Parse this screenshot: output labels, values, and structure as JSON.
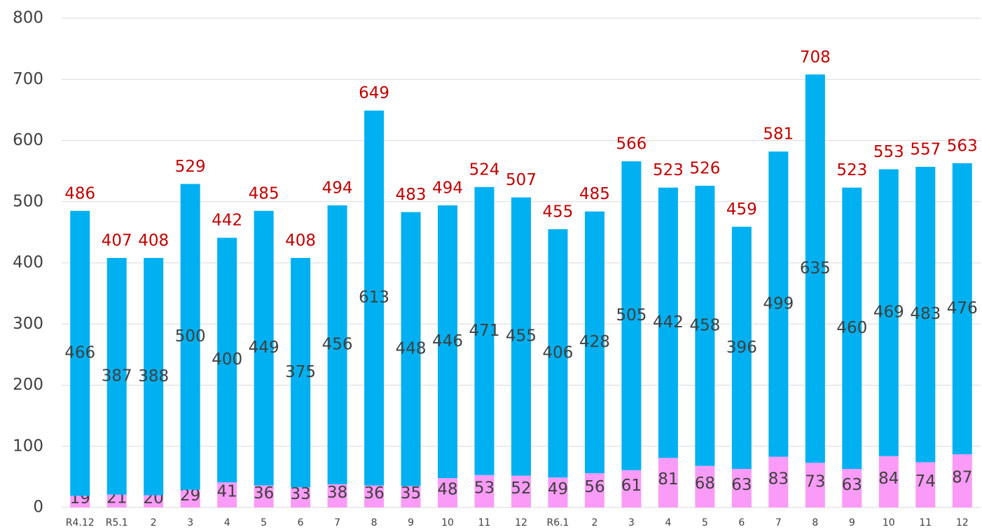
{
  "chart_data": {
    "type": "stacked_bar",
    "categories": [
      "R4.12",
      "R5.1",
      "2",
      "3",
      "4",
      "5",
      "6",
      "7",
      "8",
      "9",
      "10",
      "11",
      "12",
      "R6.1",
      "2",
      "3",
      "4",
      "5",
      "6",
      "7",
      "8",
      "9",
      "10",
      "11",
      "12"
    ],
    "series": [
      {
        "color": "#fa9bf7",
        "values": [
          19,
          21,
          20,
          29,
          41,
          36,
          33,
          38,
          36,
          35,
          48,
          53,
          52,
          49,
          56,
          61,
          81,
          68,
          63,
          83,
          73,
          63,
          84,
          74,
          87
        ]
      },
      {
        "color": "#00b0f0",
        "values": [
          466,
          387,
          388,
          500,
          400,
          449,
          375,
          456,
          613,
          448,
          446,
          471,
          455,
          406,
          428,
          505,
          442,
          458,
          396,
          499,
          635,
          460,
          469,
          483,
          476
        ]
      }
    ],
    "totals": [
      486,
      407,
      408,
      529,
      442,
      485,
      408,
      494,
      649,
      483,
      494,
      524,
      507,
      455,
      485,
      566,
      523,
      526,
      459,
      581,
      708,
      523,
      553,
      557,
      563
    ],
    "totals_color": "#c00000",
    "ylim": [
      0,
      800
    ],
    "yticks": [
      0,
      100,
      200,
      300,
      400,
      500,
      600,
      700,
      800
    ],
    "grid": true
  }
}
